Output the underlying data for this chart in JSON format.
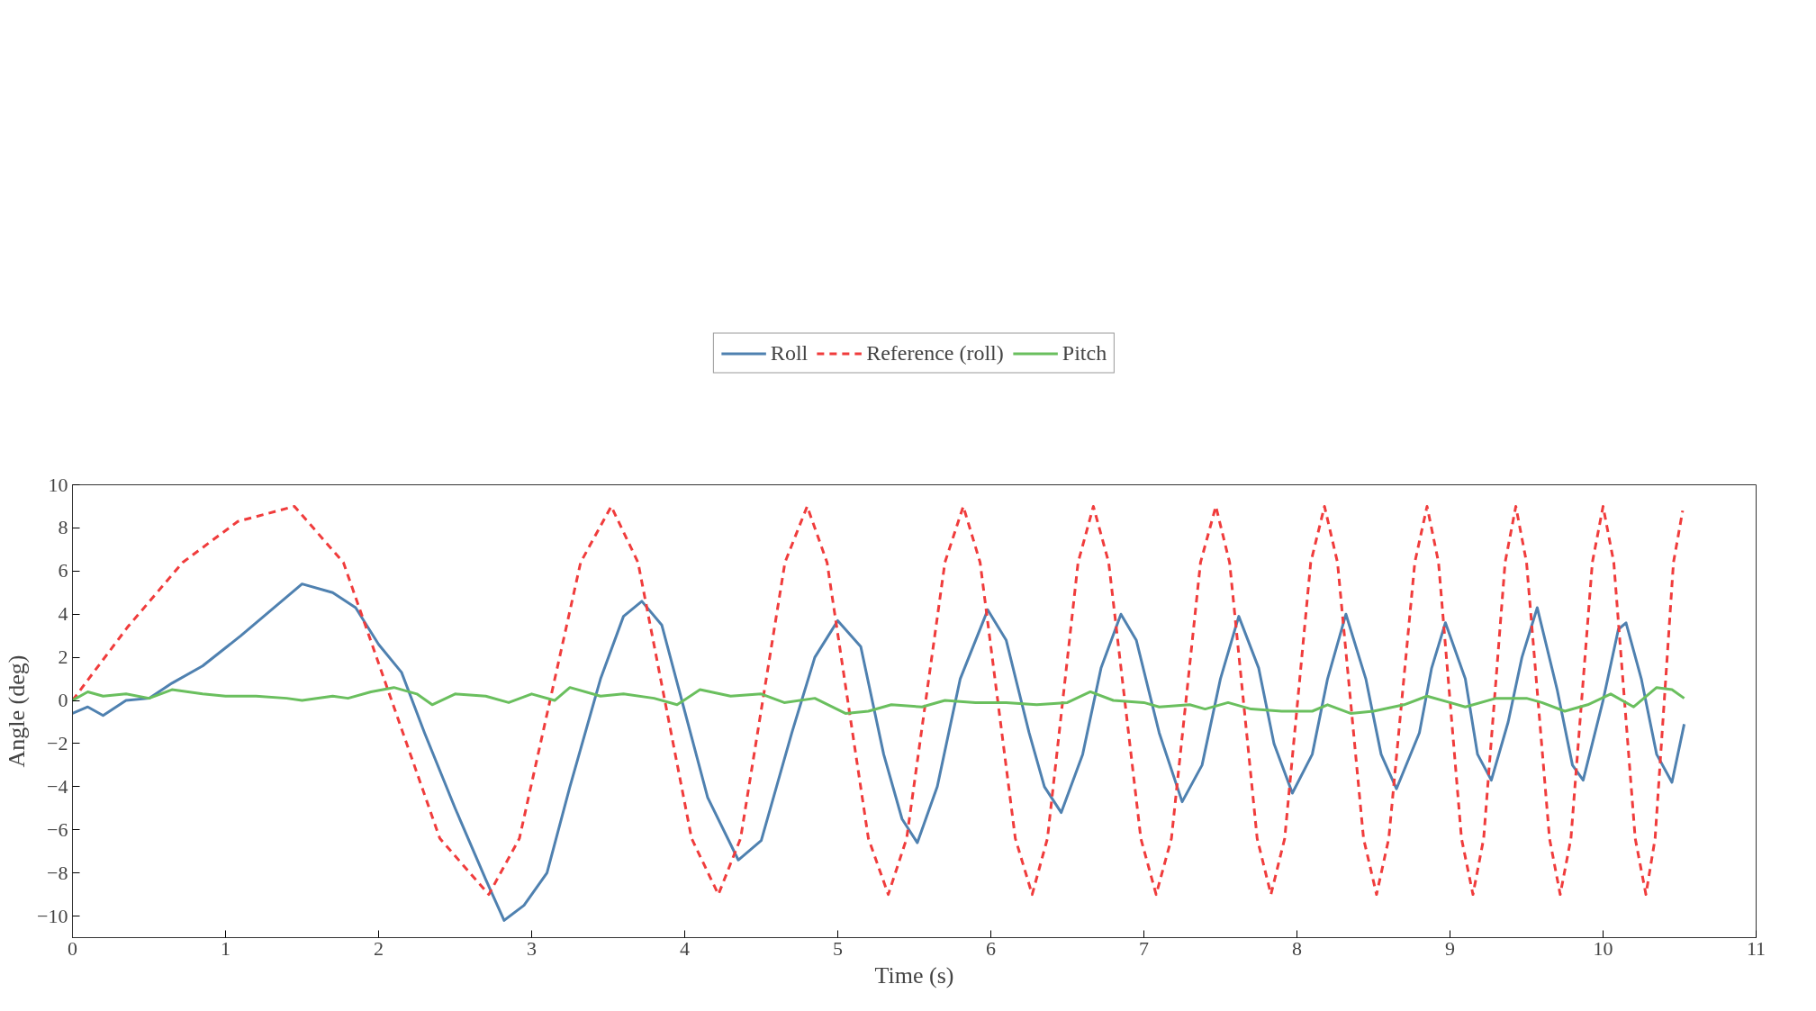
{
  "chart_data": {
    "type": "line",
    "xlabel": "Time (s)",
    "ylabel": "Angle (deg)",
    "xlim": [
      0,
      11
    ],
    "xticks": [
      0,
      1,
      2,
      3,
      4,
      5,
      6,
      7,
      8,
      9,
      10,
      11
    ],
    "ylim": [
      -11,
      10
    ],
    "yticks": [
      -10,
      -8,
      -6,
      -4,
      -2,
      0,
      2,
      4,
      6,
      8,
      10
    ],
    "grid": false,
    "legend": "top",
    "series": [
      {
        "name": "Roll",
        "color": "#4f81b0",
        "line_style": "solid",
        "x": [
          0,
          0.1,
          0.2,
          0.35,
          0.5,
          0.65,
          0.85,
          1.1,
          1.3,
          1.5,
          1.7,
          1.85,
          2.0,
          2.15,
          2.3,
          2.5,
          2.7,
          2.82,
          2.95,
          3.1,
          3.25,
          3.45,
          3.6,
          3.72,
          3.85,
          4.0,
          4.15,
          4.35,
          4.5,
          4.7,
          4.85,
          5.0,
          5.15,
          5.3,
          5.42,
          5.52,
          5.65,
          5.8,
          5.98,
          6.1,
          6.25,
          6.35,
          6.46,
          6.6,
          6.72,
          6.85,
          6.95,
          7.1,
          7.25,
          7.38,
          7.5,
          7.62,
          7.75,
          7.85,
          7.97,
          8.1,
          8.2,
          8.32,
          8.45,
          8.55,
          8.65,
          8.8,
          8.88,
          8.97,
          9.1,
          9.18,
          9.27,
          9.38,
          9.47,
          9.57,
          9.7,
          9.8,
          9.87,
          10.0,
          10.1,
          10.15,
          10.25,
          10.35,
          10.45,
          10.53
        ],
        "values": [
          -0.6,
          -0.3,
          -0.7,
          0,
          0.1,
          0.8,
          1.6,
          3.0,
          4.2,
          5.4,
          5.0,
          4.3,
          2.6,
          1.3,
          -1.5,
          -5,
          -8.3,
          -10.2,
          -9.5,
          -8,
          -4,
          1,
          3.9,
          4.6,
          3.5,
          -0.5,
          -4.5,
          -7.4,
          -6.5,
          -1.5,
          2.0,
          3.7,
          2.5,
          -2.5,
          -5.5,
          -6.6,
          -4,
          1.0,
          4.2,
          2.8,
          -1.5,
          -4,
          -5.2,
          -2.5,
          1.5,
          4.0,
          2.8,
          -1.5,
          -4.7,
          -3.0,
          1.0,
          3.9,
          1.5,
          -2.0,
          -4.3,
          -2.5,
          1.0,
          4.0,
          1.0,
          -2.5,
          -4.1,
          -1.5,
          1.5,
          3.6,
          1.0,
          -2.5,
          -3.7,
          -1.0,
          2.0,
          4.3,
          0.5,
          -3.0,
          -3.7,
          0.0,
          3.3,
          3.6,
          1.0,
          -2.5,
          -3.8,
          -1.1
        ]
      },
      {
        "name": "Reference (roll)",
        "color": "#f03c3c",
        "line_style": "dashed",
        "x": [
          0,
          0.36,
          0.72,
          1.08,
          1.45,
          1.77,
          2.085,
          2.4,
          2.72,
          2.92,
          3.12,
          3.32,
          3.52,
          3.695,
          3.87,
          4.045,
          4.22,
          4.365,
          4.51,
          4.655,
          4.8,
          4.93,
          5.065,
          5.2,
          5.33,
          5.45,
          5.575,
          5.7,
          5.82,
          5.93,
          6.045,
          6.16,
          6.27,
          6.37,
          6.47,
          6.57,
          6.67,
          6.77,
          6.875,
          6.98,
          7.08,
          7.18,
          7.275,
          7.37,
          7.47,
          7.56,
          7.65,
          7.74,
          7.83,
          7.92,
          8.005,
          8.09,
          8.18,
          8.265,
          8.35,
          8.435,
          8.52,
          8.6,
          8.685,
          8.77,
          8.85,
          8.925,
          9.0,
          9.075,
          9.15,
          9.22,
          9.29,
          9.36,
          9.43,
          9.5,
          9.575,
          9.65,
          9.72,
          9.79,
          9.86,
          9.93,
          10.0,
          10.07,
          10.14,
          10.21,
          10.28,
          10.34,
          10.4,
          10.46,
          10.52
        ],
        "values": [
          0,
          3.4,
          6.4,
          8.3,
          9,
          6.4,
          0,
          -6.4,
          -9,
          -6.4,
          0,
          6.4,
          9,
          6.4,
          0,
          -6.4,
          -9,
          -6.4,
          0,
          6.4,
          9,
          6.4,
          0,
          -6.4,
          -9,
          -6.4,
          0,
          6.4,
          9,
          6.4,
          0,
          -6.4,
          -9,
          -6.4,
          0,
          6.4,
          9,
          6.4,
          0,
          -6.4,
          -9,
          -6.4,
          0,
          6.4,
          9,
          6.4,
          0,
          -6.4,
          -9,
          -6.4,
          0,
          6.4,
          9,
          6.4,
          0,
          -6.4,
          -9,
          -6.4,
          0,
          6.4,
          9,
          6.4,
          0,
          -6.4,
          -9,
          -6.4,
          0,
          6.4,
          9,
          6.4,
          0,
          -6.4,
          -9,
          -6.4,
          0,
          6.4,
          9,
          6.4,
          0,
          -6.4,
          -9,
          -6.4,
          0,
          6.4,
          8.8
        ]
      },
      {
        "name": "Pitch",
        "color": "#6abf5e",
        "line_style": "solid",
        "x": [
          0,
          0.1,
          0.2,
          0.35,
          0.5,
          0.65,
          0.85,
          1.0,
          1.2,
          1.4,
          1.5,
          1.7,
          1.8,
          1.95,
          2.1,
          2.25,
          2.35,
          2.5,
          2.7,
          2.85,
          3.0,
          3.15,
          3.25,
          3.45,
          3.6,
          3.8,
          3.95,
          4.1,
          4.3,
          4.5,
          4.65,
          4.85,
          5.05,
          5.2,
          5.35,
          5.55,
          5.7,
          5.9,
          6.1,
          6.3,
          6.5,
          6.65,
          6.8,
          7.0,
          7.1,
          7.3,
          7.4,
          7.55,
          7.7,
          7.9,
          8.1,
          8.2,
          8.35,
          8.5,
          8.7,
          8.85,
          9.0,
          9.1,
          9.3,
          9.5,
          9.6,
          9.75,
          9.9,
          10.05,
          10.2,
          10.35,
          10.45,
          10.53
        ],
        "values": [
          0,
          0.4,
          0.2,
          0.3,
          0.1,
          0.5,
          0.3,
          0.2,
          0.2,
          0.1,
          0,
          0.2,
          0.1,
          0.4,
          0.6,
          0.3,
          -0.2,
          0.3,
          0.2,
          -0.1,
          0.3,
          0.0,
          0.6,
          0.2,
          0.3,
          0.1,
          -0.2,
          0.5,
          0.2,
          0.3,
          -0.1,
          0.1,
          -0.6,
          -0.5,
          -0.2,
          -0.3,
          0.0,
          -0.1,
          -0.1,
          -0.2,
          -0.1,
          0.4,
          0.0,
          -0.1,
          -0.3,
          -0.2,
          -0.4,
          -0.1,
          -0.4,
          -0.5,
          -0.5,
          -0.2,
          -0.6,
          -0.5,
          -0.2,
          0.2,
          -0.1,
          -0.3,
          0.1,
          0.1,
          -0.1,
          -0.5,
          -0.2,
          0.3,
          -0.3,
          0.6,
          0.5,
          0.1
        ]
      }
    ]
  }
}
